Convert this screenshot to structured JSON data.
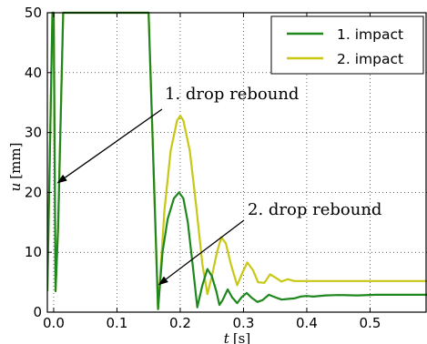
{
  "chart_data": {
    "type": "line",
    "xlabel_var": "t",
    "xlabel_unit": "[s]",
    "ylabel_var": "u",
    "ylabel_unit": "[mm]",
    "xlim": [
      -0.01,
      0.59
    ],
    "ylim": [
      0,
      50
    ],
    "xticks": [
      0.0,
      0.1,
      0.2,
      0.3,
      0.4,
      0.5
    ],
    "xtick_labels": [
      "0.0",
      "0.1",
      "0.2",
      "0.3",
      "0.4",
      "0.5"
    ],
    "yticks": [
      0,
      10,
      20,
      30,
      40,
      50
    ],
    "ytick_labels": [
      "0",
      "10",
      "20",
      "30",
      "40",
      "50"
    ],
    "grid": true,
    "grid_style": "dotted",
    "legend_position": "top-right",
    "series": [
      {
        "name": "1. impact",
        "color": "#1e881e",
        "points": [
          [
            -0.01,
            3.5
          ],
          [
            -0.002,
            50
          ],
          [
            0,
            50
          ],
          [
            0.003,
            3.5
          ],
          [
            0.007,
            14
          ],
          [
            0.015,
            50
          ],
          [
            0.15,
            50
          ],
          [
            0.165,
            0.5
          ],
          [
            0.172,
            10
          ],
          [
            0.18,
            15.5
          ],
          [
            0.19,
            19
          ],
          [
            0.198,
            20
          ],
          [
            0.205,
            19
          ],
          [
            0.212,
            15
          ],
          [
            0.22,
            7.5
          ],
          [
            0.227,
            0.8
          ],
          [
            0.235,
            4.5
          ],
          [
            0.243,
            7.2
          ],
          [
            0.25,
            6
          ],
          [
            0.257,
            3.5
          ],
          [
            0.262,
            1.2
          ],
          [
            0.267,
            2
          ],
          [
            0.275,
            3.8
          ],
          [
            0.282,
            2.5
          ],
          [
            0.29,
            1.5
          ],
          [
            0.297,
            2.5
          ],
          [
            0.305,
            3.2
          ],
          [
            0.313,
            2.4
          ],
          [
            0.322,
            1.7
          ],
          [
            0.33,
            2
          ],
          [
            0.34,
            2.9
          ],
          [
            0.35,
            2.5
          ],
          [
            0.36,
            2.1
          ],
          [
            0.37,
            2.2
          ],
          [
            0.38,
            2.3
          ],
          [
            0.39,
            2.6
          ],
          [
            0.4,
            2.7
          ],
          [
            0.41,
            2.6
          ],
          [
            0.43,
            2.8
          ],
          [
            0.45,
            2.85
          ],
          [
            0.48,
            2.8
          ],
          [
            0.51,
            2.9
          ],
          [
            0.55,
            2.9
          ],
          [
            0.59,
            2.9
          ]
        ]
      },
      {
        "name": "2. impact",
        "color": "#c8c814",
        "points": [
          [
            -0.01,
            3.5
          ],
          [
            -0.002,
            50
          ],
          [
            0,
            50
          ],
          [
            0.003,
            3.5
          ],
          [
            0.007,
            14
          ],
          [
            0.015,
            50
          ],
          [
            0.15,
            50
          ],
          [
            0.165,
            0.5
          ],
          [
            0.175,
            17
          ],
          [
            0.185,
            27
          ],
          [
            0.195,
            32
          ],
          [
            0.2,
            32.8
          ],
          [
            0.205,
            32
          ],
          [
            0.215,
            27
          ],
          [
            0.225,
            18
          ],
          [
            0.235,
            8
          ],
          [
            0.243,
            3
          ],
          [
            0.25,
            6
          ],
          [
            0.258,
            10
          ],
          [
            0.265,
            12.5
          ],
          [
            0.272,
            11.5
          ],
          [
            0.28,
            8
          ],
          [
            0.29,
            4.5
          ],
          [
            0.298,
            6.5
          ],
          [
            0.306,
            8.3
          ],
          [
            0.315,
            7
          ],
          [
            0.323,
            5
          ],
          [
            0.333,
            4.9
          ],
          [
            0.342,
            6.3
          ],
          [
            0.35,
            5.8
          ],
          [
            0.36,
            5.1
          ],
          [
            0.37,
            5.5
          ],
          [
            0.38,
            5.2
          ],
          [
            0.4,
            5.2
          ],
          [
            0.45,
            5.2
          ],
          [
            0.5,
            5.2
          ],
          [
            0.59,
            5.2
          ]
        ]
      }
    ],
    "annotations": [
      {
        "text": "1. drop rebound",
        "arrow_target": [
          0.005,
          21.5
        ]
      },
      {
        "text": "2. drop rebound",
        "arrow_target": [
          0.165,
          4.5
        ]
      }
    ]
  }
}
